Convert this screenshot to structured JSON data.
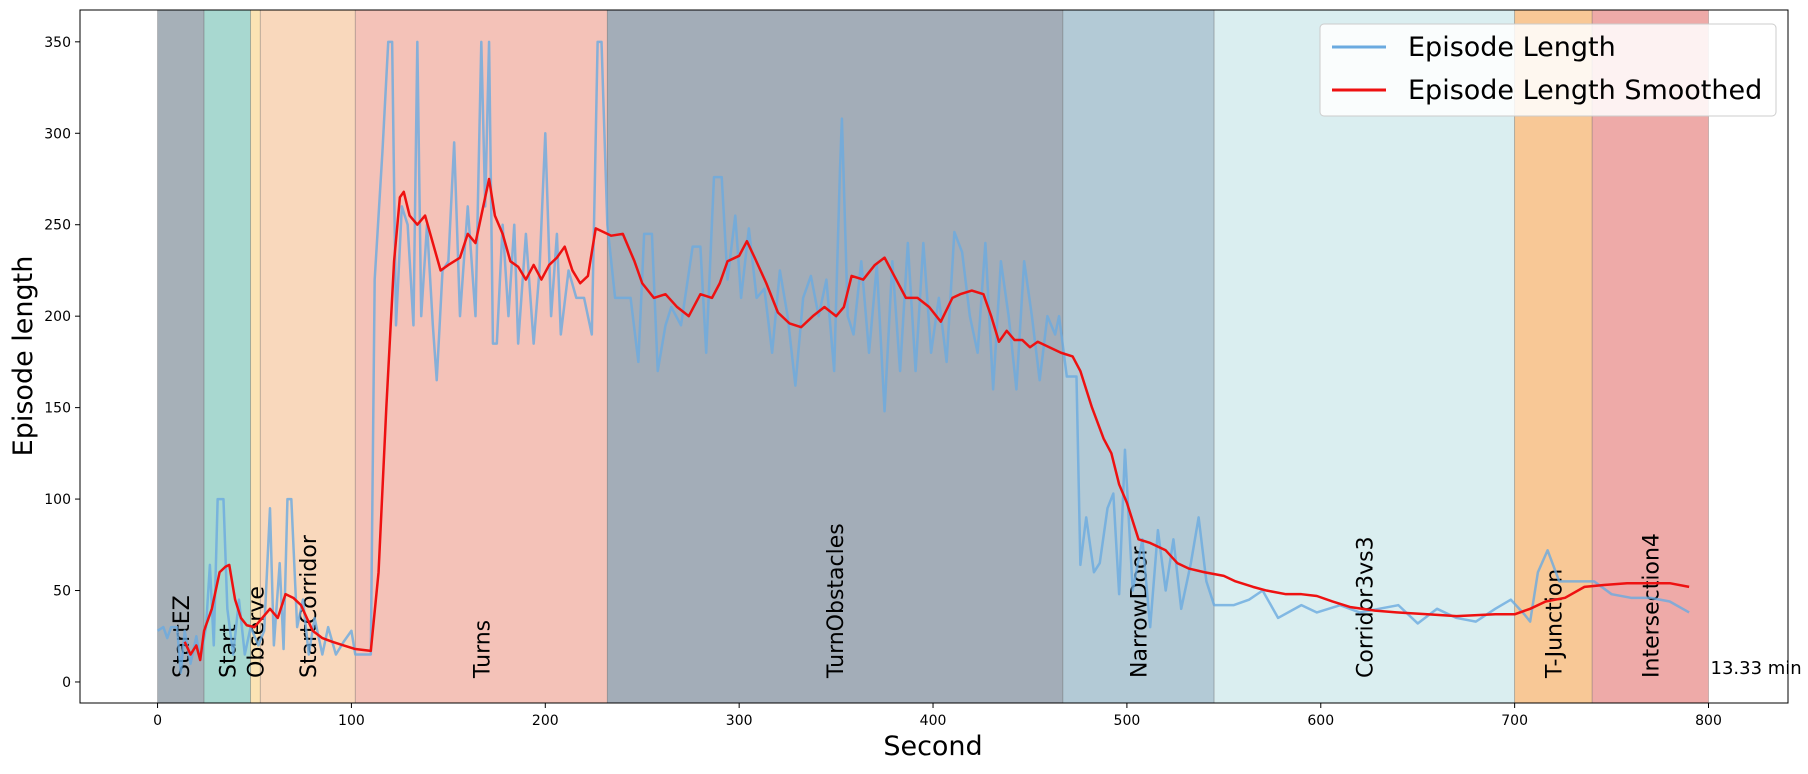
{
  "chart_data": {
    "type": "line",
    "xlabel": "Second",
    "ylabel": "Episode length",
    "annotation": "13.33 min",
    "xlim": [
      -40,
      841
    ],
    "ylim": [
      -11.5,
      367.4
    ],
    "xticks": [
      0,
      100,
      200,
      300,
      400,
      500,
      600,
      700,
      800
    ],
    "yticks": [
      0,
      50,
      100,
      150,
      200,
      250,
      300,
      350
    ],
    "legend": "upper right",
    "bands": [
      {
        "label": "StartEZ",
        "start": 0,
        "end": 24,
        "color": "#a6b0b8"
      },
      {
        "label": "Start",
        "start": 24,
        "end": 48,
        "color": "#a8d8d0"
      },
      {
        "label": "Observe",
        "start": 48,
        "end": 53,
        "color": "#fbe3b4"
      },
      {
        "label": "StartCorridor",
        "start": 53,
        "end": 102,
        "color": "#f9d8bc"
      },
      {
        "label": "Turns",
        "start": 102,
        "end": 232,
        "color": "#f4c2b8"
      },
      {
        "label": "TurnObstacles",
        "start": 232,
        "end": 467,
        "color": "#a3adb8"
      },
      {
        "label": "NarrowDoor",
        "start": 467,
        "end": 545,
        "color": "#b3cad6"
      },
      {
        "label": "Corridor3vs3",
        "start": 545,
        "end": 700,
        "color": "#daeef0"
      },
      {
        "label": "T-Junction",
        "start": 700,
        "end": 740,
        "color": "#f8c896"
      },
      {
        "label": "Intersection4",
        "start": 740,
        "end": 800,
        "color": "#eeaaa8"
      }
    ],
    "series": [
      {
        "name": "Episode Length",
        "color": "#6aaae0",
        "x": [
          0,
          3,
          5,
          7,
          10,
          12,
          14,
          17,
          20,
          22,
          25,
          27,
          29,
          31,
          34,
          36,
          39,
          42,
          45,
          48,
          52,
          55,
          58,
          60,
          63,
          65,
          67,
          69,
          72,
          75,
          78,
          81,
          85,
          88,
          92,
          96,
          100,
          102,
          105,
          110,
          112,
          116,
          119,
          121,
          123,
          126,
          129,
          132,
          134,
          136,
          139,
          142,
          144,
          147,
          150,
          153,
          156,
          160,
          164,
          167,
          169,
          171,
          173,
          175,
          178,
          181,
          184,
          186,
          190,
          194,
          197,
          200,
          203,
          206,
          208,
          212,
          216,
          220,
          224,
          227,
          229,
          232,
          236,
          244,
          248,
          251,
          255,
          258,
          262,
          265,
          270,
          276,
          280,
          283,
          287,
          291,
          294,
          298,
          301,
          305,
          309,
          313,
          317,
          321,
          325,
          329,
          333,
          337,
          341,
          345,
          349,
          352,
          353,
          356,
          359,
          363,
          367,
          371,
          375,
          379,
          383,
          387,
          391,
          395,
          399,
          403,
          407,
          411,
          415,
          419,
          423,
          427,
          431,
          435,
          439,
          443,
          447,
          451,
          455,
          459,
          463,
          465,
          469,
          474,
          476,
          479,
          483,
          486,
          490,
          493,
          496,
          499,
          503,
          508,
          512,
          516,
          520,
          524,
          528,
          533,
          537,
          541,
          545,
          555,
          563,
          570,
          578,
          590,
          598,
          610,
          620,
          630,
          640,
          650,
          660,
          670,
          680,
          690,
          698,
          705,
          708,
          712,
          717,
          723,
          733,
          741,
          750,
          760,
          770,
          780,
          790
        ],
        "values": [
          28,
          30,
          24,
          30,
          30,
          5,
          28,
          10,
          25,
          12,
          30,
          64,
          20,
          100,
          100,
          40,
          15,
          45,
          15,
          30,
          20,
          28,
          95,
          20,
          65,
          18,
          100,
          100,
          30,
          45,
          15,
          35,
          15,
          30,
          15,
          22,
          28,
          15,
          15,
          15,
          220,
          290,
          350,
          350,
          195,
          260,
          250,
          195,
          350,
          200,
          250,
          195,
          165,
          225,
          230,
          295,
          200,
          260,
          200,
          350,
          260,
          350,
          185,
          185,
          250,
          200,
          250,
          185,
          245,
          185,
          225,
          300,
          200,
          245,
          190,
          225,
          210,
          210,
          190,
          350,
          350,
          250,
          210,
          210,
          175,
          245,
          245,
          170,
          195,
          205,
          195,
          238,
          238,
          180,
          276,
          276,
          220,
          255,
          210,
          248,
          210,
          215,
          180,
          225,
          200,
          162,
          210,
          222,
          200,
          220,
          170,
          280,
          308,
          200,
          190,
          230,
          180,
          228,
          148,
          230,
          170,
          240,
          170,
          240,
          180,
          210,
          175,
          246,
          235,
          200,
          180,
          240,
          160,
          230,
          200,
          160,
          230,
          200,
          165,
          200,
          190,
          200,
          167,
          167,
          64,
          90,
          60,
          65,
          95,
          103,
          48,
          127,
          50,
          78,
          30,
          83,
          50,
          78,
          40,
          65,
          90,
          55,
          42,
          42,
          45,
          50,
          35,
          42,
          38,
          42,
          38,
          40,
          42,
          32,
          40,
          35,
          33,
          40,
          45,
          37,
          33,
          60,
          72,
          55,
          55,
          55,
          48,
          46,
          46,
          44,
          38
        ]
      },
      {
        "name": "Episode Length Smoothed",
        "color": "#ee1111",
        "x": [
          14,
          17,
          20,
          22,
          24,
          28,
          32,
          35,
          37,
          40,
          43,
          46,
          50,
          54,
          58,
          62,
          66,
          70,
          74,
          80,
          85,
          90,
          96,
          102,
          110,
          114,
          118,
          122,
          125,
          127,
          130,
          134,
          138,
          142,
          146,
          150,
          156,
          160,
          164,
          168,
          171,
          174,
          178,
          182,
          186,
          190,
          194,
          198,
          202,
          206,
          210,
          214,
          218,
          222,
          226,
          230,
          234,
          240,
          246,
          250,
          256,
          262,
          268,
          274,
          280,
          286,
          290,
          294,
          300,
          304,
          308,
          314,
          320,
          326,
          332,
          338,
          344,
          350,
          354,
          358,
          364,
          370,
          375,
          380,
          386,
          392,
          398,
          404,
          410,
          414,
          420,
          426,
          430,
          434,
          438,
          442,
          446,
          450,
          454,
          460,
          466,
          472,
          476,
          482,
          488,
          492,
          496,
          500,
          506,
          512,
          520,
          526,
          532,
          540,
          550,
          556,
          565,
          572,
          582,
          590,
          598,
          606,
          615,
          628,
          640,
          655,
          670,
          690,
          700,
          708,
          716,
          726,
          736,
          746,
          758,
          770,
          780,
          790
        ],
        "values": [
          22,
          15,
          20,
          12,
          28,
          40,
          60,
          63,
          64,
          45,
          35,
          31,
          30,
          35,
          40,
          35,
          48,
          46,
          42,
          28,
          24,
          22,
          20,
          18,
          17,
          60,
          150,
          230,
          265,
          268,
          255,
          250,
          255,
          240,
          225,
          228,
          232,
          245,
          240,
          260,
          275,
          255,
          245,
          230,
          227,
          220,
          228,
          220,
          228,
          232,
          238,
          225,
          218,
          222,
          248,
          246,
          244,
          245,
          230,
          218,
          210,
          212,
          205,
          200,
          212,
          210,
          218,
          230,
          233,
          241,
          232,
          218,
          202,
          196,
          194,
          200,
          205,
          200,
          205,
          222,
          220,
          228,
          232,
          222,
          210,
          210,
          205,
          197,
          210,
          212,
          214,
          212,
          200,
          186,
          192,
          187,
          187,
          183,
          186,
          183,
          180,
          178,
          170,
          150,
          133,
          125,
          108,
          98,
          78,
          76,
          72,
          65,
          62,
          60,
          58,
          55,
          52,
          50,
          48,
          48,
          47,
          44,
          41,
          39,
          38,
          37,
          36,
          37,
          37,
          40,
          44,
          46,
          52,
          53,
          54,
          54,
          54,
          52
        ]
      }
    ]
  }
}
